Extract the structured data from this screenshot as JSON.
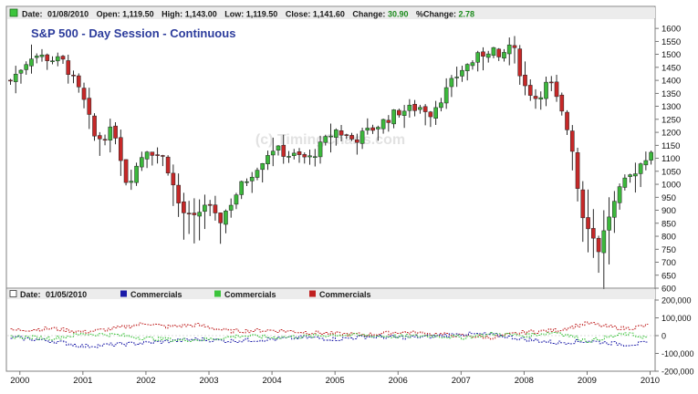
{
  "header": {
    "date_label": "Date:",
    "date": "01/08/2010",
    "open_label": "Open:",
    "open": "1,119.50",
    "high_label": "High:",
    "high": "1,143.00",
    "low_label": "Low:",
    "low": "1,119.50",
    "close_label": "Close:",
    "close": "1,141.60",
    "change_label": "Change:",
    "change": "30.90",
    "pct_label": "%Change:",
    "pct": "2.78"
  },
  "price_panel": {
    "title": "S&P 500 - Day Session - Continuous",
    "watermark": "(c) TimingCharts.com"
  },
  "cot_panel": {
    "date_label": "Date:",
    "date": "01/05/2010",
    "legend": [
      {
        "name": "Commercials",
        "color": "#1a1aa8"
      },
      {
        "name": "Commercials",
        "color": "#3cc43c"
      },
      {
        "name": "Commercials",
        "color": "#c02020"
      }
    ]
  },
  "colors": {
    "up_candle": "#3cb83c",
    "down_candle": "#c62828",
    "header_bg": "#ececec",
    "frame": "#808080",
    "title": "#2c3c9c",
    "watermark": "#e2e2e2",
    "positive_value": "#1e8c1e"
  },
  "chart_data": [
    {
      "type": "candlestick",
      "title": "S&P 500 - Day Session - Continuous",
      "period": "monthly",
      "ylim": [
        600,
        1625
      ],
      "y_ticks": [
        600,
        650,
        700,
        750,
        800,
        850,
        900,
        950,
        1000,
        1050,
        1100,
        1150,
        1200,
        1250,
        1300,
        1350,
        1400,
        1450,
        1500,
        1550,
        1600
      ],
      "x_ticks": [
        "2000",
        "2001",
        "2002",
        "2003",
        "2004",
        "2005",
        "2006",
        "2007",
        "2008",
        "2009",
        "2010"
      ],
      "x_range": [
        1999.8,
        2010.08
      ],
      "key_points": [
        {
          "x": 1999.85,
          "close": 1400
        },
        {
          "x": 2000.2,
          "close": 1500
        },
        {
          "x": 2000.7,
          "close": 1470
        },
        {
          "x": 2001.0,
          "close": 1330
        },
        {
          "x": 2001.2,
          "close": 1170
        },
        {
          "x": 2001.5,
          "close": 1210
        },
        {
          "x": 2001.7,
          "close": 1000
        },
        {
          "x": 2002.0,
          "close": 1140
        },
        {
          "x": 2002.3,
          "close": 1100
        },
        {
          "x": 2002.55,
          "close": 900
        },
        {
          "x": 2002.75,
          "close": 860
        },
        {
          "x": 2002.95,
          "close": 930
        },
        {
          "x": 2003.15,
          "close": 850
        },
        {
          "x": 2003.5,
          "close": 990
        },
        {
          "x": 2004.0,
          "close": 1140
        },
        {
          "x": 2004.3,
          "close": 1110
        },
        {
          "x": 2004.6,
          "close": 1100
        },
        {
          "x": 2005.0,
          "close": 1210
        },
        {
          "x": 2005.3,
          "close": 1170
        },
        {
          "x": 2005.7,
          "close": 1230
        },
        {
          "x": 2006.0,
          "close": 1280
        },
        {
          "x": 2006.4,
          "close": 1300
        },
        {
          "x": 2006.5,
          "close": 1270
        },
        {
          "x": 2007.0,
          "close": 1440
        },
        {
          "x": 2007.5,
          "close": 1530
        },
        {
          "x": 2007.6,
          "close": 1470
        },
        {
          "x": 2007.8,
          "close": 1550
        },
        {
          "x": 2008.0,
          "close": 1380
        },
        {
          "x": 2008.2,
          "close": 1330
        },
        {
          "x": 2008.4,
          "close": 1400
        },
        {
          "x": 2008.6,
          "close": 1270
        },
        {
          "x": 2008.75,
          "close": 1170
        },
        {
          "x": 2008.9,
          "close": 900
        },
        {
          "x": 2009.05,
          "close": 830
        },
        {
          "x": 2009.17,
          "close": 740
        },
        {
          "x": 2009.35,
          "close": 880
        },
        {
          "x": 2009.55,
          "close": 990
        },
        {
          "x": 2009.75,
          "close": 1050
        },
        {
          "x": 2009.95,
          "close": 1110
        },
        {
          "x": 2010.03,
          "close": 1140
        }
      ]
    },
    {
      "type": "line",
      "style": "step",
      "ylim": [
        -200000,
        200000
      ],
      "y_ticks": [
        -200000,
        -100000,
        0,
        100000,
        200000
      ],
      "y_tick_labels": [
        "-200,000",
        "-100,000",
        "0",
        "100,000",
        "200,000"
      ],
      "x_range": [
        1999.8,
        2010.08
      ],
      "series": [
        {
          "name": "Commercials",
          "color": "#c02020",
          "points": [
            [
              1999.85,
              30000
            ],
            [
              2000.5,
              40000
            ],
            [
              2001.0,
              20000
            ],
            [
              2001.5,
              40000
            ],
            [
              2002.0,
              70000
            ],
            [
              2002.3,
              50000
            ],
            [
              2002.8,
              60000
            ],
            [
              2003.3,
              25000
            ],
            [
              2004.0,
              30000
            ],
            [
              2004.5,
              20000
            ],
            [
              2005.0,
              10000
            ],
            [
              2005.5,
              5000
            ],
            [
              2006.0,
              20000
            ],
            [
              2006.5,
              10000
            ],
            [
              2007.0,
              0
            ],
            [
              2007.5,
              -10000
            ],
            [
              2008.0,
              20000
            ],
            [
              2008.5,
              30000
            ],
            [
              2009.0,
              70000
            ],
            [
              2009.3,
              50000
            ],
            [
              2009.6,
              40000
            ],
            [
              2010.0,
              60000
            ]
          ]
        },
        {
          "name": "Commercials",
          "color": "#1a1aa8",
          "points": [
            [
              1999.85,
              -10000
            ],
            [
              2000.5,
              -30000
            ],
            [
              2001.0,
              -60000
            ],
            [
              2001.5,
              -50000
            ],
            [
              2002.0,
              -40000
            ],
            [
              2002.4,
              -30000
            ],
            [
              2002.8,
              -20000
            ],
            [
              2003.3,
              -30000
            ],
            [
              2004.0,
              -20000
            ],
            [
              2004.5,
              -10000
            ],
            [
              2005.0,
              -20000
            ],
            [
              2005.5,
              -5000
            ],
            [
              2006.0,
              -10000
            ],
            [
              2006.5,
              -5000
            ],
            [
              2007.0,
              10000
            ],
            [
              2007.5,
              5000
            ],
            [
              2008.0,
              -20000
            ],
            [
              2008.5,
              -40000
            ],
            [
              2009.0,
              -30000
            ],
            [
              2009.3,
              -40000
            ],
            [
              2009.6,
              -50000
            ],
            [
              2010.0,
              -40000
            ]
          ]
        },
        {
          "name": "Commercials",
          "color": "#3cc43c",
          "points": [
            [
              1999.85,
              -5000
            ],
            [
              2000.5,
              -15000
            ],
            [
              2001.0,
              10000
            ],
            [
              2001.5,
              5000
            ],
            [
              2002.0,
              -15000
            ],
            [
              2002.5,
              -25000
            ],
            [
              2003.0,
              -20000
            ],
            [
              2003.5,
              0
            ],
            [
              2004.0,
              -10000
            ],
            [
              2004.5,
              -5000
            ],
            [
              2005.0,
              5000
            ],
            [
              2005.5,
              0
            ],
            [
              2006.0,
              -5000
            ],
            [
              2006.5,
              0
            ],
            [
              2007.0,
              -10000
            ],
            [
              2007.5,
              10000
            ],
            [
              2008.0,
              0
            ],
            [
              2008.5,
              20000
            ],
            [
              2009.0,
              -30000
            ],
            [
              2009.3,
              -10000
            ],
            [
              2009.6,
              10000
            ],
            [
              2010.0,
              -15000
            ]
          ]
        }
      ]
    }
  ]
}
